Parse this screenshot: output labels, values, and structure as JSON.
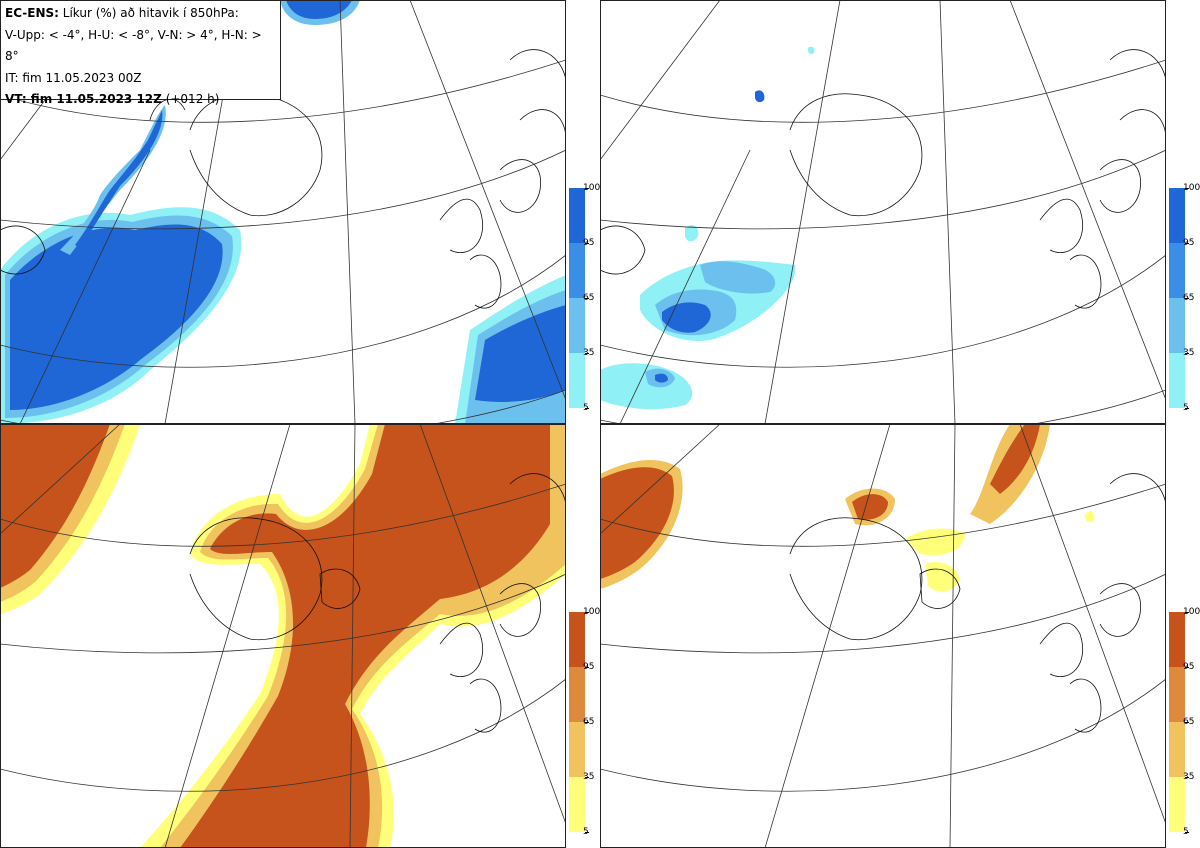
{
  "info": {
    "line1_bold": "EC-ENS:",
    "line1_rest": " Líkur (%) að hitavik í 850hPa:",
    "line2": "V-Upp: < -4°, H-U: < -8°, V-N: > 4°, H-N: > 8°",
    "line3": "IT: fim 11.05.2023 00Z",
    "line4_bold": "VT: fim 11.05.2023 12Z",
    "line4_rest": " (+012 h)"
  },
  "panels": [
    {
      "id": "cold-4",
      "color_scheme": "blue"
    },
    {
      "id": "cold-8",
      "color_scheme": "blue"
    },
    {
      "id": "warm-4",
      "color_scheme": "orange"
    },
    {
      "id": "warm-8",
      "color_scheme": "orange"
    }
  ],
  "legend_blue": {
    "labels": [
      "100",
      "95",
      "65",
      "35",
      "5"
    ],
    "colors": [
      "#1f66d6",
      "#3b8ee6",
      "#6cc0ee",
      "#8ff0f6"
    ]
  },
  "legend_orange": {
    "labels": [
      "100",
      "95",
      "65",
      "35",
      "5"
    ],
    "colors": [
      "#c5531b",
      "#dd8a3c",
      "#f0c35e",
      "#ffff7a"
    ]
  }
}
